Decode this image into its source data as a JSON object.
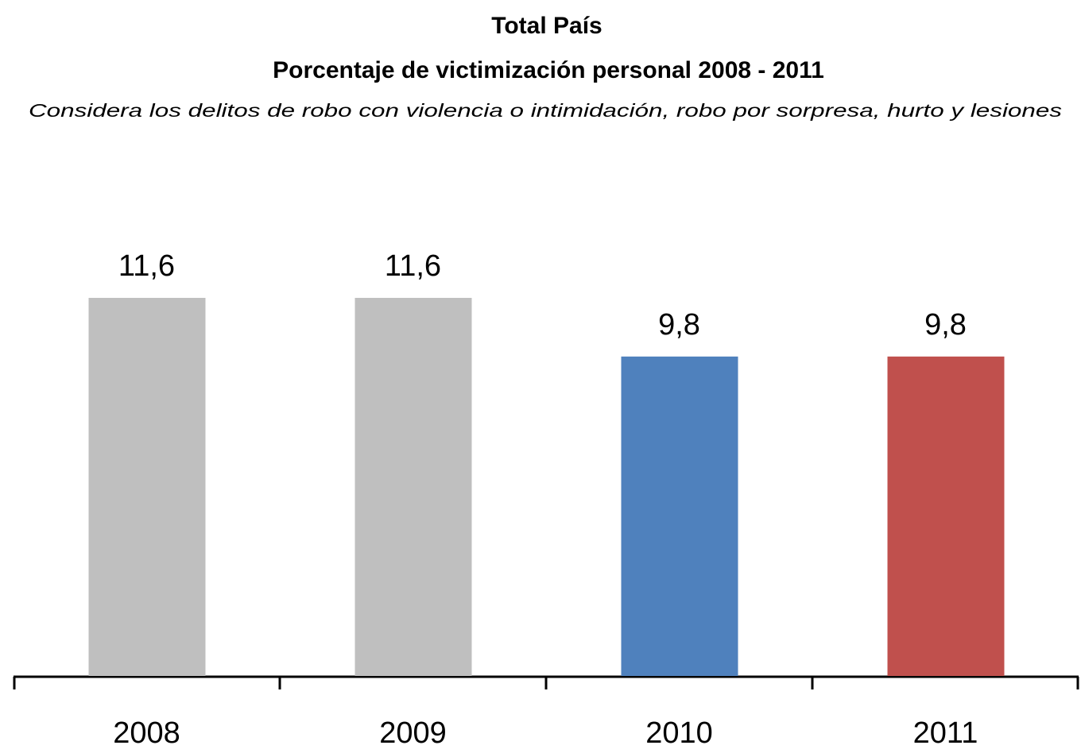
{
  "chart_data": {
    "type": "bar",
    "title": "Total País",
    "subtitle": "Porcentaje de victimización personal 2008 - 2011",
    "note": "Considera los delitos de robo con violencia o intimidación, robo por sorpresa, hurto y lesiones",
    "categories": [
      "2008",
      "2009",
      "2010",
      "2011"
    ],
    "values": [
      11.6,
      11.6,
      9.8,
      9.8
    ],
    "value_labels": [
      "11,6",
      "11,6",
      "9,8",
      "9,8"
    ],
    "colors": [
      "#bfbfbf",
      "#bfbfbf",
      "#4f81bd",
      "#c0504d"
    ]
  }
}
